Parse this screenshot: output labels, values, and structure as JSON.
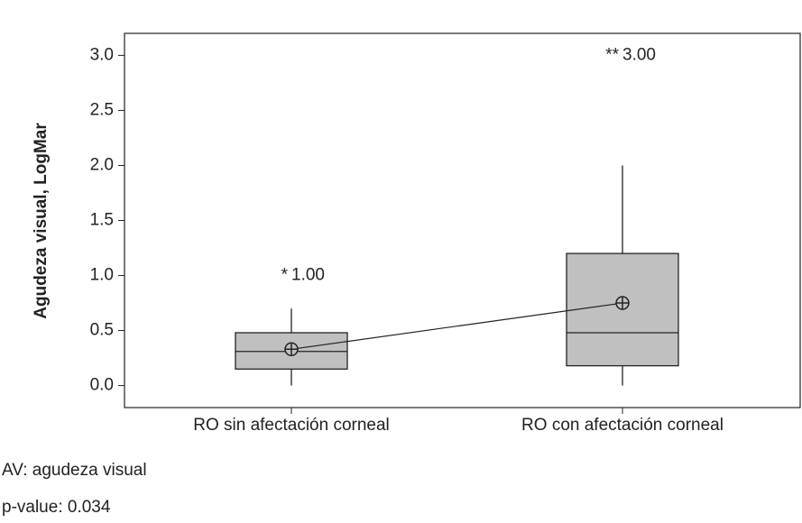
{
  "chart_data": {
    "type": "box",
    "y_label": "Agudeza visual, LogMar",
    "categories": [
      "RO sin afectación corneal",
      "RO con afectación corneal"
    ],
    "boxes": [
      {
        "min": 0,
        "q1": 0.15,
        "median": 0.31,
        "q3": 0.48,
        "max": 0.7,
        "mean": 0.33,
        "outliers": [
          {
            "value": 1,
            "marker": "*",
            "label": "1.00"
          }
        ]
      },
      {
        "min": 0,
        "q1": 0.18,
        "median": 0.48,
        "q3": 1.2,
        "max": 2.0,
        "mean": 0.75,
        "outliers": [
          {
            "value": 3,
            "marker": "**",
            "label": "3.00"
          }
        ]
      }
    ],
    "color": "#c0c0c0",
    "mean_line": true,
    "ylim": [
      -0.2,
      3.2
    ],
    "yticks": [
      {
        "value": 0,
        "label": "0.0"
      },
      {
        "value": 0.5,
        "label": "0.5"
      },
      {
        "value": 1,
        "label": "1.0"
      },
      {
        "value": 1.5,
        "label": "1.5"
      },
      {
        "value": 2,
        "label": "2.0"
      },
      {
        "value": 2.5,
        "label": "2.5"
      },
      {
        "value": 3,
        "label": "3.0"
      }
    ],
    "notes": [
      "AV: agudeza visual",
      "p-value: 0.034"
    ]
  }
}
